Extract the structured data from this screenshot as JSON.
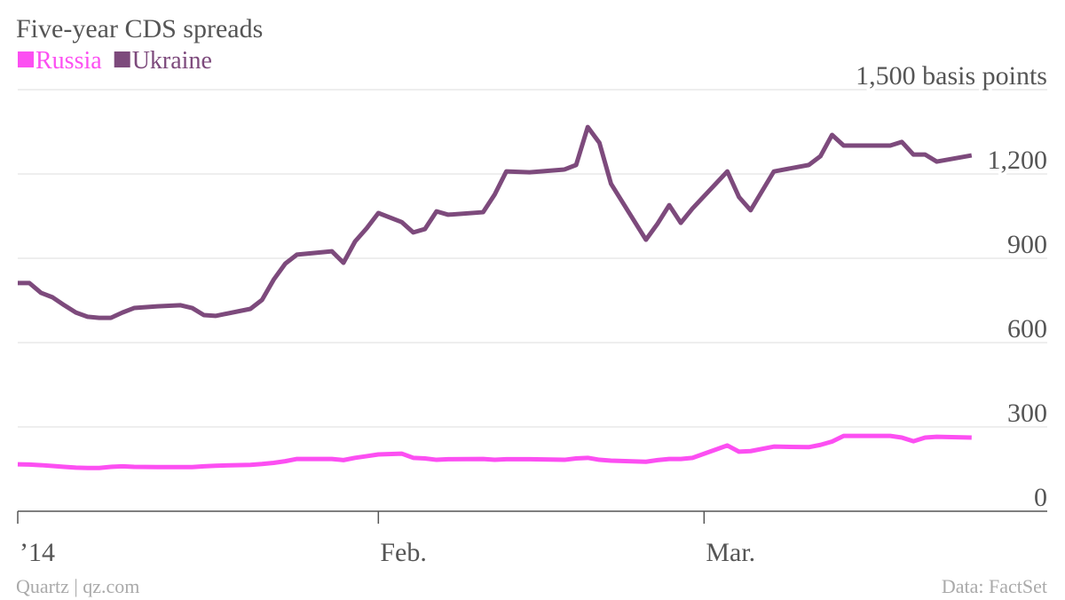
{
  "chart_data": {
    "type": "line",
    "title": "Five-year CDS spreads",
    "credit": "Quartz | qz.com",
    "source": "Data: FactSet",
    "x": [
      0,
      1,
      2,
      3,
      4,
      5,
      6,
      7,
      8,
      9,
      10,
      12,
      14,
      15,
      16,
      17,
      20,
      21,
      22,
      23,
      24,
      27,
      28,
      29,
      30,
      31,
      33,
      34,
      35,
      36,
      37,
      40,
      41,
      42,
      44,
      47,
      48,
      49,
      50,
      51,
      54,
      55,
      56,
      57,
      58,
      61,
      62,
      63,
      65,
      68,
      69,
      70,
      71,
      75,
      76,
      77,
      78,
      79,
      82
    ],
    "series": [
      {
        "name": "Russia",
        "color": "#fc4ff2",
        "values": [
          167,
          166,
          164,
          161,
          158,
          155,
          154,
          154,
          158,
          160,
          158,
          157,
          157,
          157,
          160,
          162,
          165,
          168,
          172,
          178,
          186,
          186,
          182,
          190,
          196,
          202,
          205,
          190,
          188,
          183,
          185,
          186,
          183,
          185,
          185,
          183,
          188,
          190,
          183,
          180,
          176,
          182,
          186,
          186,
          190,
          234,
          212,
          214,
          230,
          228,
          236,
          248,
          268,
          268,
          262,
          249,
          262,
          265,
          262
        ]
      },
      {
        "name": "Ukraine",
        "color": "#7d4a7c",
        "values": [
          812,
          812,
          777,
          761,
          733,
          707,
          692,
          688,
          688,
          707,
          723,
          729,
          733,
          723,
          698,
          695,
          720,
          752,
          824,
          881,
          913,
          925,
          884,
          960,
          1007,
          1061,
          1029,
          992,
          1004,
          1067,
          1055,
          1064,
          1127,
          1209,
          1206,
          1216,
          1232,
          1367,
          1311,
          1165,
          966,
          1023,
          1089,
          1026,
          1077,
          1209,
          1118,
          1071,
          1209,
          1232,
          1263,
          1339,
          1301,
          1301,
          1314,
          1269,
          1269,
          1244,
          1266
        ]
      }
    ],
    "xlim": [
      0,
      88.5
    ],
    "xticks": [
      {
        "value": 0,
        "label": "’14"
      },
      {
        "value": 31,
        "label": "Feb."
      },
      {
        "value": 59,
        "label": "Mar."
      }
    ],
    "ylim": [
      0,
      1500
    ],
    "yticks": [
      0,
      300,
      600,
      900,
      {
        "value": 1200,
        "label": "1,200"
      },
      {
        "value": 1500,
        "label": "1,500 basis points"
      }
    ],
    "grid": true
  }
}
